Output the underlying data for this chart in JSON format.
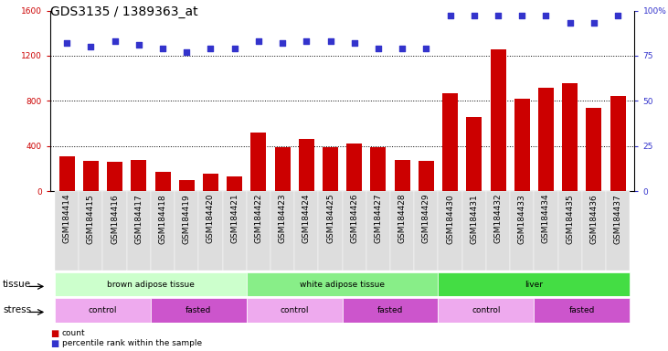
{
  "title": "GDS3135 / 1389363_at",
  "samples": [
    "GSM184414",
    "GSM184415",
    "GSM184416",
    "GSM184417",
    "GSM184418",
    "GSM184419",
    "GSM184420",
    "GSM184421",
    "GSM184422",
    "GSM184423",
    "GSM184424",
    "GSM184425",
    "GSM184426",
    "GSM184427",
    "GSM184428",
    "GSM184429",
    "GSM184430",
    "GSM184431",
    "GSM184432",
    "GSM184433",
    "GSM184434",
    "GSM184435",
    "GSM184436",
    "GSM184437"
  ],
  "counts": [
    310,
    270,
    265,
    275,
    175,
    100,
    155,
    130,
    520,
    390,
    460,
    390,
    420,
    390,
    280,
    270,
    870,
    660,
    1260,
    820,
    920,
    960,
    740,
    840
  ],
  "percentile_ranks": [
    82,
    80,
    83,
    81,
    79,
    77,
    79,
    79,
    83,
    82,
    83,
    83,
    82,
    79,
    79,
    79,
    97,
    97,
    97,
    97,
    97,
    93,
    93,
    97
  ],
  "bar_color": "#cc0000",
  "dot_color": "#3333cc",
  "ylim_left": [
    0,
    1600
  ],
  "ylim_right": [
    0,
    100
  ],
  "yticks_left": [
    0,
    400,
    800,
    1200,
    1600
  ],
  "yticks_right": [
    0,
    25,
    50,
    75,
    100
  ],
  "grid_lines": [
    400,
    800,
    1200
  ],
  "tissue_groups": [
    {
      "label": "brown adipose tissue",
      "start": 0,
      "end": 8,
      "color": "#ccffcc"
    },
    {
      "label": "white adipose tissue",
      "start": 8,
      "end": 16,
      "color": "#88ee88"
    },
    {
      "label": "liver",
      "start": 16,
      "end": 24,
      "color": "#44dd44"
    }
  ],
  "stress_groups": [
    {
      "label": "control",
      "start": 0,
      "end": 4,
      "color": "#eeaaee"
    },
    {
      "label": "fasted",
      "start": 4,
      "end": 8,
      "color": "#cc55cc"
    },
    {
      "label": "control",
      "start": 8,
      "end": 12,
      "color": "#eeaaee"
    },
    {
      "label": "fasted",
      "start": 12,
      "end": 16,
      "color": "#cc55cc"
    },
    {
      "label": "control",
      "start": 16,
      "end": 20,
      "color": "#eeaaee"
    },
    {
      "label": "fasted",
      "start": 20,
      "end": 24,
      "color": "#cc55cc"
    }
  ],
  "legend_count_label": "count",
  "legend_pct_label": "percentile rank within the sample",
  "tissue_label": "tissue",
  "stress_label": "stress",
  "title_fontsize": 10,
  "tick_fontsize": 6.5,
  "label_fontsize": 8,
  "background_color": "#ffffff",
  "xticklabel_bg": "#dddddd"
}
